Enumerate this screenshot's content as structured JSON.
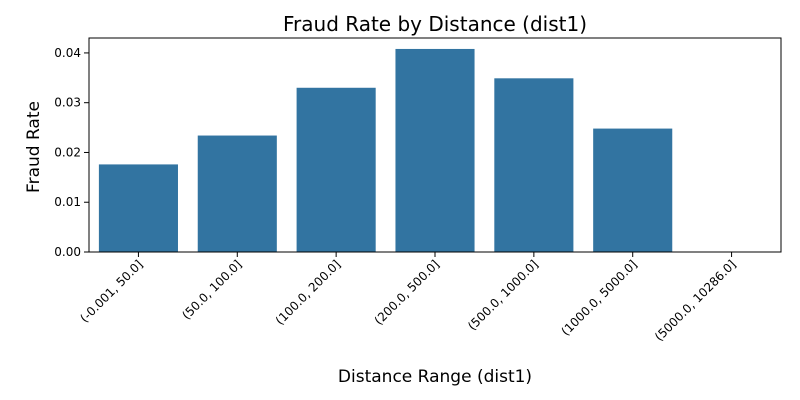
{
  "chart_data": {
    "type": "bar",
    "title": "Fraud Rate by Distance (dist1)",
    "xlabel": "Distance Range (dist1)",
    "ylabel": "Fraud Rate",
    "categories": [
      "(-0.001, 50.0]",
      "(50.0, 100.0]",
      "(100.0, 200.0]",
      "(200.0, 500.0]",
      "(500.0, 1000.0]",
      "(1000.0, 5000.0]",
      "(5000.0, 10286.0]"
    ],
    "values": [
      0.0176,
      0.0234,
      0.033,
      0.0408,
      0.0349,
      0.0248,
      0.0
    ],
    "ylim": [
      0,
      0.043
    ],
    "yticks": [
      0.0,
      0.01,
      0.02,
      0.03,
      0.04
    ],
    "ytick_labels": [
      "0.00",
      "0.01",
      "0.02",
      "0.03",
      "0.04"
    ],
    "bar_color": "#3274a1",
    "grid": false,
    "xtick_rotation": "45 degrees"
  }
}
